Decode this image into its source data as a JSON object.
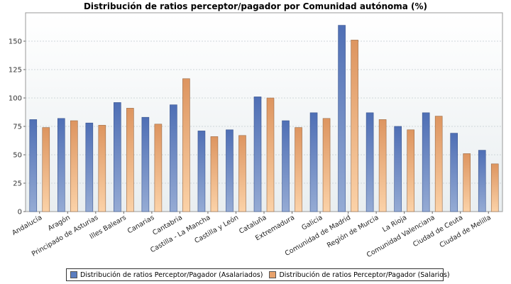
{
  "chart_data": {
    "type": "bar",
    "title": "Distribución de ratios perceptor/pagador por Comunidad autónoma (%)",
    "xlabel": "",
    "ylabel": "",
    "ylim": [
      0,
      175
    ],
    "yticks": [
      0,
      25,
      50,
      75,
      100,
      125,
      150
    ],
    "grid": true,
    "legend_position": "bottom",
    "categories": [
      "Andalucía",
      "Aragón",
      "Principado de Asturias",
      "Illes Balears",
      "Canarias",
      "Cantabria",
      "Castilla - La Mancha",
      "Castilla y León",
      "Cataluña",
      "Extremadura",
      "Galicia",
      "Comunidad de Madrid",
      "Región de Murcia",
      "La Rioja",
      "Comunidad Valenciana",
      "Ciudad de Ceuta",
      "Ciudad de Melilla"
    ],
    "series": [
      {
        "name": "Distribución de ratios Perceptor/Pagador (Asalariados)",
        "color": "#5a7dc0",
        "values": [
          81,
          82,
          78,
          96,
          83,
          94,
          71,
          72,
          101,
          80,
          87,
          164,
          87,
          75,
          87,
          69,
          54
        ]
      },
      {
        "name": "Distribución de ratios Perceptor/Pagador (Salarios)",
        "color": "#e8a26c",
        "values": [
          74,
          80,
          76,
          91,
          77,
          117,
          66,
          67,
          100,
          74,
          82,
          151,
          81,
          72,
          84,
          51,
          42
        ]
      }
    ]
  }
}
